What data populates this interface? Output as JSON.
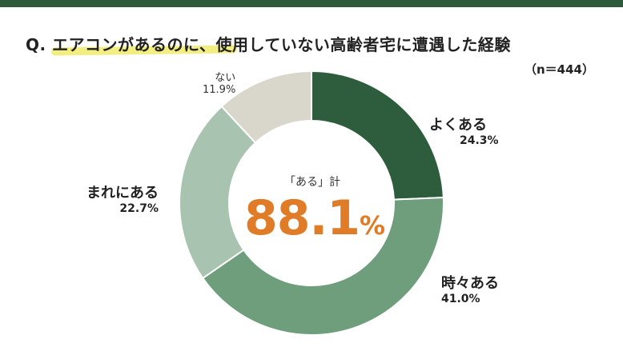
{
  "title": "Q. エアコンがあるのに、使用していない高齢者宅に遭遇した経験",
  "sample_size": "（n＝444）",
  "center": {
    "label": "「ある」計",
    "value": "88.1",
    "unit": "%"
  },
  "colors": {
    "header_bar": "#2e5a3c",
    "highlight": "#f3ee82",
    "center_value": "#e07b27"
  },
  "chart_data": {
    "type": "pie",
    "donut": true,
    "categories": [
      "よくある",
      "時々ある",
      "まれにある",
      "ない"
    ],
    "values": [
      24.3,
      41.0,
      22.7,
      11.9
    ],
    "value_labels": [
      "24.3%",
      "41.0%",
      "22.7%",
      "11.9%"
    ],
    "colors": [
      "#2e5d3e",
      "#6e9e7c",
      "#a8c4b0",
      "#d9d6cc"
    ],
    "start": "12 o'clock",
    "direction": "clockwise"
  }
}
